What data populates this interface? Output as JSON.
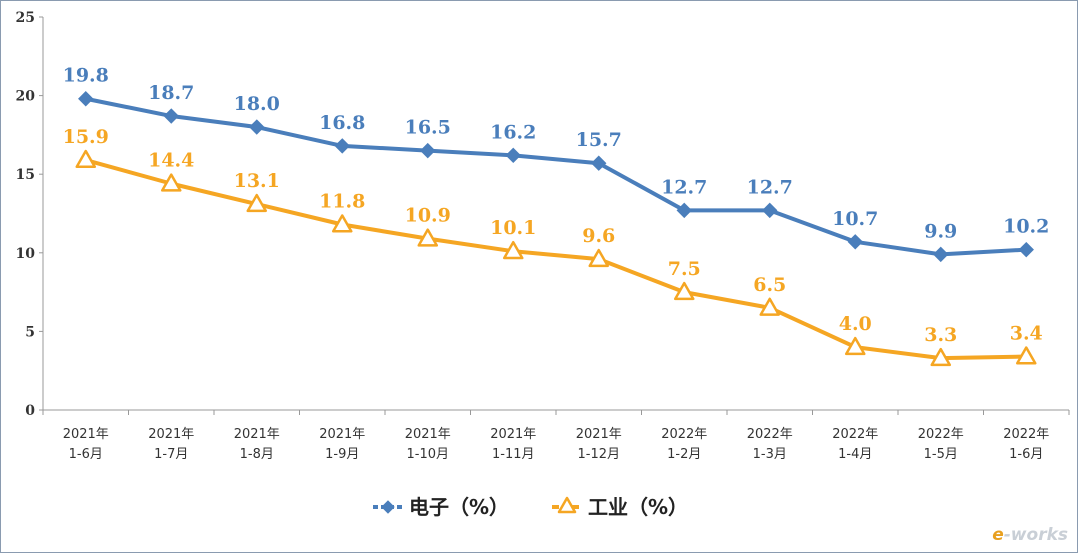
{
  "chart_data": {
    "type": "line",
    "categories": [
      [
        "2021年",
        "1-6月"
      ],
      [
        "2021年",
        "1-7月"
      ],
      [
        "2021年",
        "1-8月"
      ],
      [
        "2021年",
        "1-9月"
      ],
      [
        "2021年",
        "1-10月"
      ],
      [
        "2021年",
        "1-11月"
      ],
      [
        "2021年",
        "1-12月"
      ],
      [
        "2022年",
        "1-2月"
      ],
      [
        "2022年",
        "1-3月"
      ],
      [
        "2022年",
        "1-4月"
      ],
      [
        "2022年",
        "1-5月"
      ],
      [
        "2022年",
        "1-6月"
      ]
    ],
    "series": [
      {
        "name": "电子（%）",
        "color": "#4a7ebb",
        "marker": "diamond",
        "values": [
          19.8,
          18.7,
          18.0,
          16.8,
          16.5,
          16.2,
          15.7,
          12.7,
          12.7,
          10.7,
          9.9,
          10.2
        ],
        "labels": [
          "19.8",
          "18.7",
          "18.0",
          "16.8",
          "16.5",
          "16.2",
          "15.7",
          "12.7",
          "12.7",
          "10.7",
          "9.9",
          "10.2"
        ]
      },
      {
        "name": "工业（%）",
        "color": "#f5a623",
        "marker": "triangle",
        "values": [
          15.9,
          14.4,
          13.1,
          11.8,
          10.9,
          10.1,
          9.6,
          7.5,
          6.5,
          4.0,
          3.3,
          3.4
        ],
        "labels": [
          "15.9",
          "14.4",
          "13.1",
          "11.8",
          "10.9",
          "10.1",
          "9.6",
          "7.5",
          "6.5",
          "4.0",
          "3.3",
          "3.4"
        ]
      }
    ],
    "yticks": [
      "0",
      "5",
      "10",
      "15",
      "20",
      "25"
    ],
    "ylim": [
      0,
      25
    ],
    "grid": false,
    "legend_position": "bottom"
  },
  "watermark": {
    "e": "e",
    "rest": "-works"
  }
}
